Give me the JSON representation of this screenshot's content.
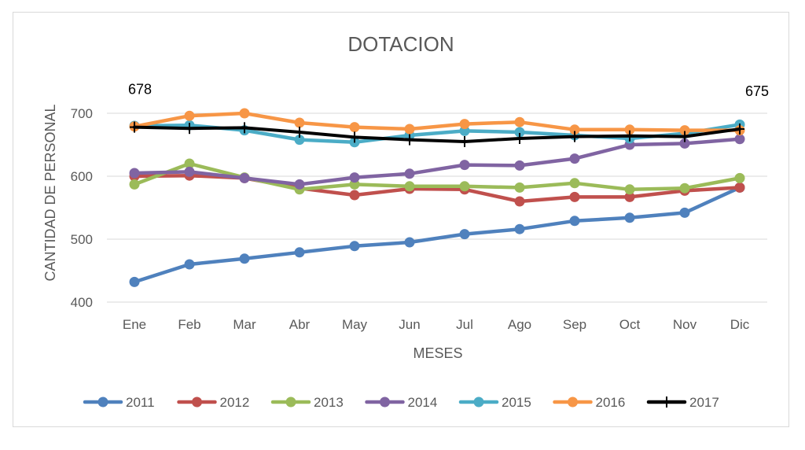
{
  "chart_data": {
    "type": "line",
    "title": "DOTACION",
    "xlabel": "MESES",
    "ylabel": "CANTIDAD DE PERSONAL",
    "ylim": [
      400,
      700
    ],
    "yticks": [
      400,
      500,
      600,
      700
    ],
    "ytick_labels": [
      "400",
      "500",
      "600",
      "700"
    ],
    "categories": [
      "Ene",
      "Feb",
      "Mar",
      "Abr",
      "May",
      "Jun",
      "Jul",
      "Ago",
      "Sep",
      "Oct",
      "Nov",
      "Dic"
    ],
    "grid": true,
    "legend_position": "bottom",
    "series": [
      {
        "name": "2011",
        "color": "#4f81bd",
        "marker": "circle",
        "values": [
          432,
          460,
          469,
          479,
          489,
          495,
          508,
          516,
          529,
          534,
          542,
          582
        ]
      },
      {
        "name": "2012",
        "color": "#c0504d",
        "marker": "circle",
        "values": [
          600,
          601,
          597,
          581,
          570,
          580,
          579,
          560,
          567,
          567,
          577,
          582
        ]
      },
      {
        "name": "2013",
        "color": "#9bbb59",
        "marker": "circle",
        "values": [
          587,
          620,
          598,
          579,
          587,
          584,
          584,
          582,
          589,
          579,
          581,
          597
        ]
      },
      {
        "name": "2014",
        "color": "#8064a2",
        "marker": "circle",
        "values": [
          605,
          607,
          597,
          587,
          598,
          604,
          618,
          617,
          628,
          650,
          652,
          659
        ]
      },
      {
        "name": "2015",
        "color": "#4bacc6",
        "marker": "circle",
        "values": [
          680,
          681,
          673,
          658,
          654,
          665,
          672,
          670,
          665,
          660,
          668,
          682
        ]
      },
      {
        "name": "2016",
        "color": "#f79646",
        "marker": "circle",
        "values": [
          679,
          696,
          700,
          685,
          678,
          675,
          683,
          686,
          674,
          674,
          673,
          673
        ]
      },
      {
        "name": "2017",
        "color": "#000000",
        "marker": "plus",
        "values": [
          678,
          676,
          677,
          670,
          662,
          658,
          655,
          660,
          663,
          664,
          663,
          675
        ]
      }
    ],
    "annotations": [
      {
        "text": "678",
        "series": "2017",
        "category": "Ene",
        "position": "above"
      },
      {
        "text": "675",
        "series": "2017",
        "category": "Dic",
        "position": "above"
      }
    ]
  }
}
